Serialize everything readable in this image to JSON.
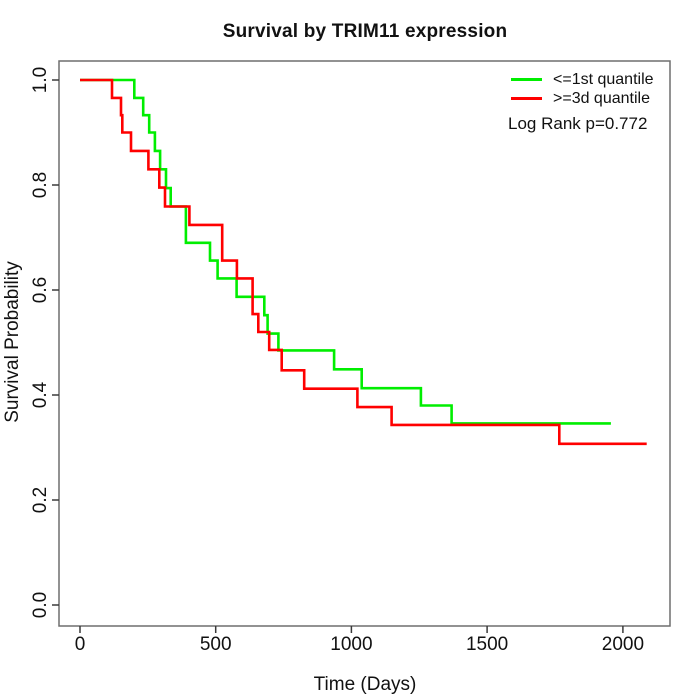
{
  "title": "Survival by TRIM11 expression",
  "x_axis": {
    "label": "Time (Days)",
    "tick_labels": [
      "0",
      "500",
      "1000",
      "1500",
      "2000"
    ],
    "tick_values": [
      0,
      500,
      1000,
      1500,
      2000
    ]
  },
  "y_axis": {
    "label": "Survival Probability",
    "tick_labels": [
      "1.0",
      "0.8",
      "0.6",
      "0.4",
      "0.2",
      "0.0"
    ],
    "tick_values": [
      1.0,
      0.8,
      0.6,
      0.4,
      0.2,
      0.0
    ]
  },
  "legend": {
    "items": [
      {
        "label": "<=1st quantile",
        "color": "#00ee00"
      },
      {
        "label": ">=3d quantile",
        "color": "#ff0000"
      }
    ],
    "annotation": "Log Rank p=0.772"
  },
  "chart_data": {
    "type": "line",
    "subtype": "kaplan_meier_step",
    "title": "Survival by TRIM11 expression",
    "xlabel": "Time (Days)",
    "ylabel": "Survival Probability",
    "xlim": [
      0,
      2174
    ],
    "ylim": [
      0,
      1
    ],
    "grid": false,
    "legend_position": "top-right",
    "annotation": "Log Rank p=0.772",
    "series": [
      {
        "name": "<=1st quantile",
        "color": "#00ee00",
        "end_time": 1956,
        "steps": [
          [
            0,
            1.0
          ],
          [
            200,
            0.966
          ],
          [
            233,
            0.933
          ],
          [
            255,
            0.9
          ],
          [
            276,
            0.865
          ],
          [
            295,
            0.83
          ],
          [
            317,
            0.794
          ],
          [
            334,
            0.759
          ],
          [
            390,
            0.69
          ],
          [
            479,
            0.656
          ],
          [
            507,
            0.622
          ],
          [
            577,
            0.587
          ],
          [
            679,
            0.552
          ],
          [
            691,
            0.517
          ],
          [
            731,
            0.485
          ],
          [
            936,
            0.449
          ],
          [
            1038,
            0.413
          ],
          [
            1256,
            0.38
          ],
          [
            1369,
            0.346
          ]
        ]
      },
      {
        "name": ">=3d quantile",
        "color": "#ff0000",
        "end_time": 2088,
        "steps": [
          [
            0,
            1.0
          ],
          [
            118,
            0.966
          ],
          [
            151,
            0.933
          ],
          [
            156,
            0.9
          ],
          [
            188,
            0.865
          ],
          [
            252,
            0.83
          ],
          [
            292,
            0.795
          ],
          [
            313,
            0.759
          ],
          [
            403,
            0.724
          ],
          [
            524,
            0.656
          ],
          [
            578,
            0.622
          ],
          [
            636,
            0.554
          ],
          [
            657,
            0.52
          ],
          [
            697,
            0.486
          ],
          [
            743,
            0.447
          ],
          [
            826,
            0.412
          ],
          [
            1022,
            0.377
          ],
          [
            1148,
            0.343
          ],
          [
            1766,
            0.307
          ]
        ]
      }
    ]
  }
}
